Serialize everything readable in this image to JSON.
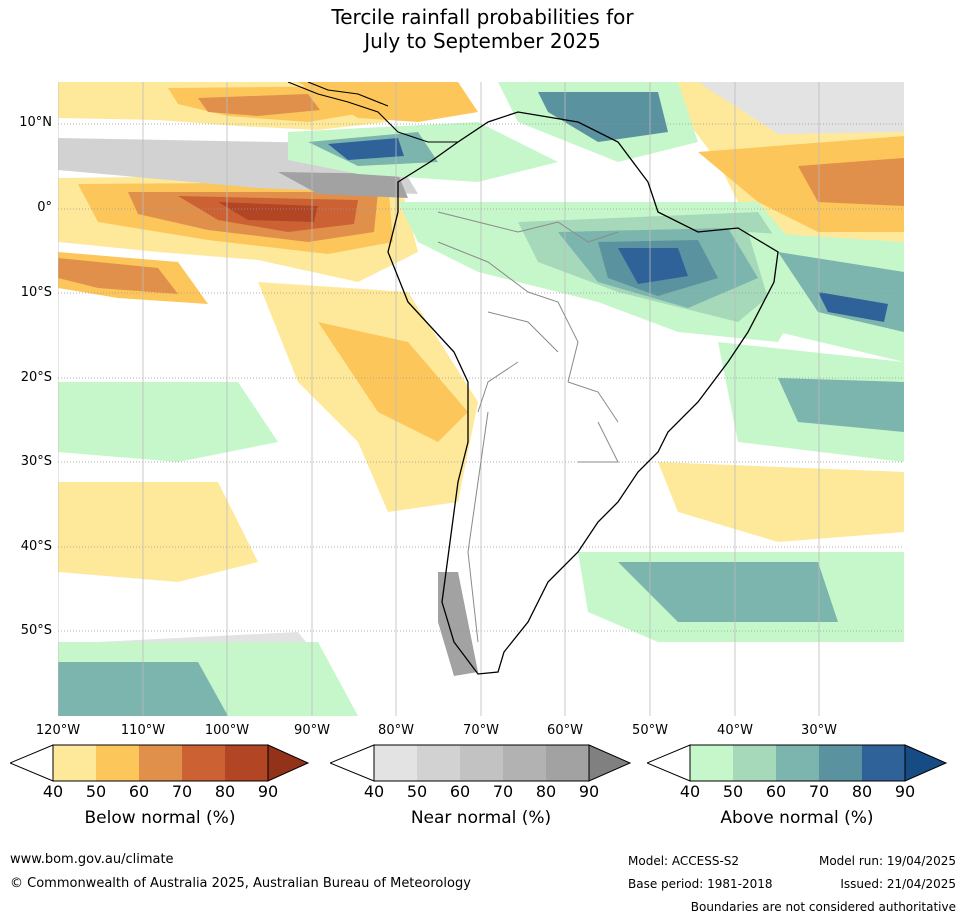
{
  "title": {
    "line1": "Tercile rainfall probabilities for",
    "line2": "July to September 2025"
  },
  "map": {
    "latitude_labels": [
      "10°N",
      "0°",
      "10°S",
      "20°S",
      "30°S",
      "40°S",
      "50°S"
    ],
    "longitude_labels": [
      "120°W",
      "110°W",
      "100°W",
      "90°W",
      "80°W",
      "70°W",
      "60°W",
      "50°W",
      "40°W",
      "30°W"
    ],
    "colors": {
      "ocean_background": "#ffffff",
      "coastline": "#000000",
      "country_borders": "#8a8a8a",
      "graticule": "#999999"
    }
  },
  "legend": {
    "ticks": [
      "40",
      "50",
      "60",
      "70",
      "80",
      "90"
    ],
    "below": {
      "label": "Below normal (%)",
      "colors": [
        "#ffffff",
        "#fee99b",
        "#fcc65a",
        "#e0904a",
        "#cc6233",
        "#b24624",
        "#923219"
      ]
    },
    "near": {
      "label": "Near normal (%)",
      "colors": [
        "#ffffff",
        "#e3e3e3",
        "#d2d2d2",
        "#c2c2c2",
        "#b2b2b2",
        "#a2a2a2",
        "#808080"
      ]
    },
    "above": {
      "label": "Above normal (%)",
      "colors": [
        "#ffffff",
        "#c6f7cb",
        "#a6d9b9",
        "#7cb4ae",
        "#5a92a0",
        "#30629a",
        "#174b84"
      ]
    }
  },
  "footer": {
    "website": "www.bom.gov.au/climate",
    "copyright": "© Commonwealth of Australia 2025, Australian Bureau of Meteorology",
    "model": "Model: ACCESS-S2",
    "model_run": "Model run: 19/04/2025",
    "base_period": "Base period: 1981-2018",
    "issued": "Issued: 21/04/2025",
    "disclaimer": "Boundaries are not considered authoritative"
  }
}
